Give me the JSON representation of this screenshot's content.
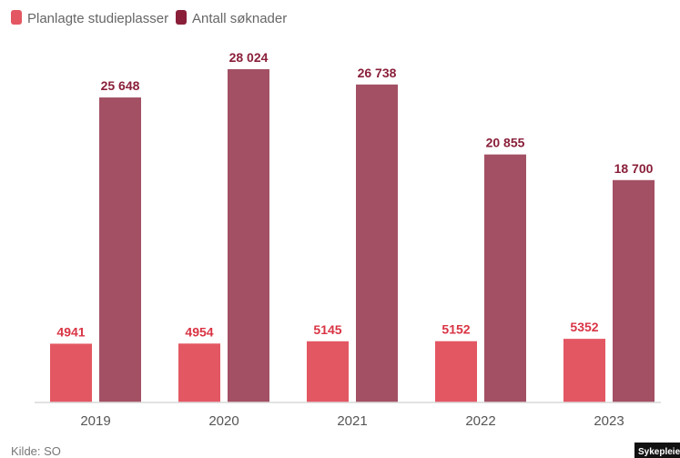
{
  "colors": {
    "planned": "#e35763",
    "planned_label": "#d93444",
    "applications": "#a35064",
    "applications_label": "#8a1f3a",
    "axis": "#d9d9d9"
  },
  "legend": {
    "planned_label": "Planlagte studieplasser",
    "applications_label": "Antall søknader"
  },
  "source": "Kilde: SO",
  "badge": "Sykepleien",
  "chart_data": {
    "type": "bar",
    "categories": [
      "2019",
      "2020",
      "2021",
      "2022",
      "2023"
    ],
    "series": [
      {
        "name": "Planlagte studieplasser",
        "values": [
          4941,
          4954,
          5145,
          5152,
          5352
        ],
        "labels": [
          "4941",
          "4954",
          "5145",
          "5152",
          "5352"
        ]
      },
      {
        "name": "Antall søknader",
        "values": [
          25648,
          28024,
          26738,
          20855,
          18700
        ],
        "labels": [
          "25 648",
          "28 024",
          "26 738",
          "20 855",
          "18 700"
        ]
      }
    ],
    "title": "",
    "xlabel": "",
    "ylabel": "",
    "ylim": [
      0,
      30000
    ],
    "grid": false,
    "legend_position": "top-left"
  }
}
